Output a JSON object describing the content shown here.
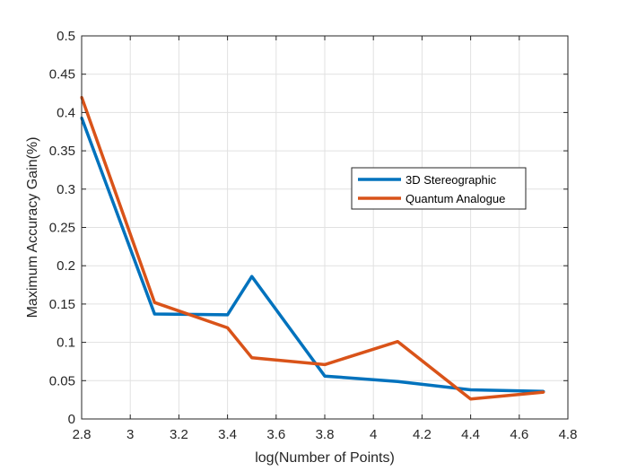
{
  "chart_data": {
    "type": "line",
    "title": "",
    "xlabel": "log(Number of Points)",
    "ylabel": "Maximum Accuracy Gain(%)",
    "xlim": [
      2.8,
      4.8
    ],
    "ylim": [
      0,
      0.5
    ],
    "x_ticks": [
      2.8,
      3,
      3.2,
      3.4,
      3.6,
      3.8,
      4,
      4.2,
      4.4,
      4.6,
      4.8
    ],
    "x_tick_labels": [
      "2.8",
      "3",
      "3.2",
      "3.4",
      "3.6",
      "3.8",
      "4",
      "4.2",
      "4.4",
      "4.6",
      "4.8"
    ],
    "y_ticks": [
      0,
      0.05,
      0.1,
      0.15,
      0.2,
      0.25,
      0.3,
      0.35,
      0.4,
      0.45,
      0.5
    ],
    "y_tick_labels": [
      "0",
      "0.05",
      "0.1",
      "0.15",
      "0.2",
      "0.25",
      "0.3",
      "0.35",
      "0.4",
      "0.45",
      "0.5"
    ],
    "grid": true,
    "legend_position": "right",
    "series": [
      {
        "name": "3D Stereographic",
        "color": "#0072BD",
        "x": [
          2.8,
          3.1,
          3.4,
          3.5,
          3.8,
          4.1,
          4.4,
          4.7
        ],
        "y": [
          0.393,
          0.137,
          0.136,
          0.186,
          0.056,
          0.049,
          0.038,
          0.036
        ]
      },
      {
        "name": "Quantum Analogue",
        "color": "#D95319",
        "x": [
          2.8,
          3.1,
          3.4,
          3.5,
          3.8,
          4.1,
          4.4,
          4.7
        ],
        "y": [
          0.42,
          0.152,
          0.119,
          0.08,
          0.071,
          0.101,
          0.026,
          0.035
        ]
      }
    ]
  }
}
